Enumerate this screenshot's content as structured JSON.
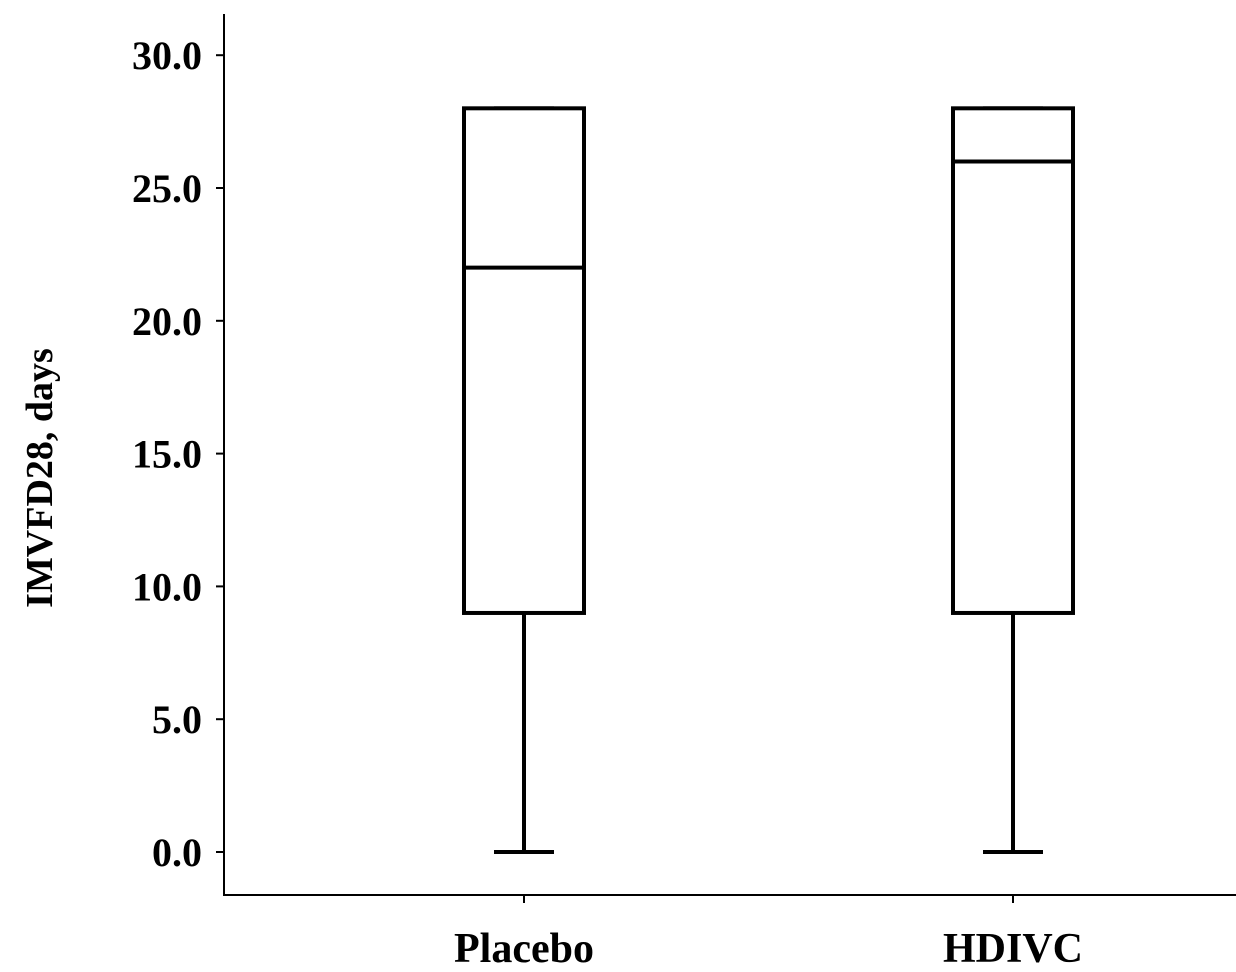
{
  "chart_data": {
    "type": "box",
    "title": "",
    "xlabel": "",
    "ylabel": "IMVFD28, days",
    "ylim": [
      -1.7,
      31.5
    ],
    "yticks": [
      "0.0",
      "5.0",
      "10.0",
      "15.0",
      "20.0",
      "25.0",
      "30.0"
    ],
    "ytick_values": [
      0,
      5,
      10,
      15,
      20,
      25,
      30
    ],
    "grid": false,
    "legend": "none",
    "categories": [
      "Placebo",
      "HDIVC"
    ],
    "series": [
      {
        "category": "Placebo",
        "min": 0,
        "q1": 9,
        "median": 22,
        "q3": 28,
        "max": 28
      },
      {
        "category": "HDIVC",
        "min": 0,
        "q1": 9,
        "median": 26,
        "q3": 28,
        "max": 28
      }
    ],
    "colors": {
      "stroke": "#000000",
      "box_fill": "#ffffff"
    }
  }
}
